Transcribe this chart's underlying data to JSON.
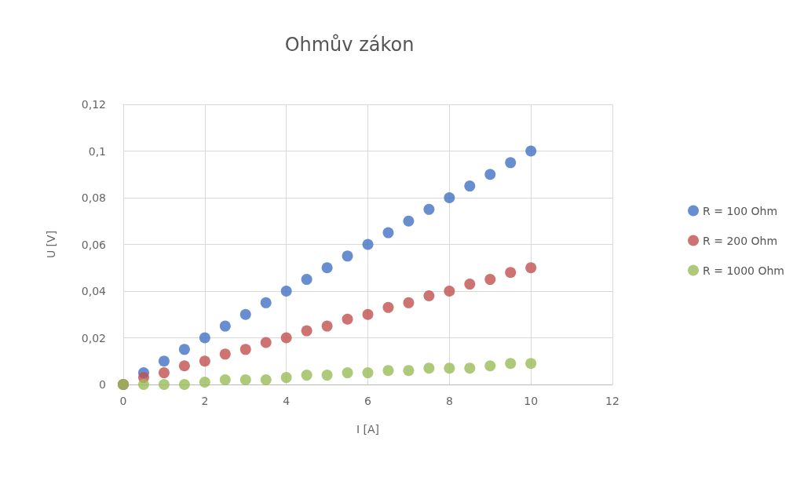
{
  "chart_data": {
    "type": "scatter",
    "title": "Ohmův zákon",
    "xlabel": "I [A]",
    "ylabel": "U [V]",
    "x": [
      0,
      0.5,
      1,
      1.5,
      2,
      2.5,
      3,
      3.5,
      4,
      4.5,
      5,
      5.5,
      6,
      6.5,
      7,
      7.5,
      8,
      8.5,
      9,
      9.5,
      10
    ],
    "series": [
      {
        "name": "R = 100 Ohm",
        "color": "#4472c4",
        "values": [
          0,
          0.005,
          0.01,
          0.015,
          0.02,
          0.025,
          0.03,
          0.035,
          0.04,
          0.045,
          0.05,
          0.055,
          0.06,
          0.065,
          0.07,
          0.075,
          0.08,
          0.085,
          0.09,
          0.095,
          0.1
        ]
      },
      {
        "name": "R = 200 Ohm",
        "color": "#c0504d",
        "values": [
          0,
          0.003,
          0.005,
          0.008,
          0.01,
          0.013,
          0.015,
          0.018,
          0.02,
          0.023,
          0.025,
          0.028,
          0.03,
          0.033,
          0.035,
          0.038,
          0.04,
          0.043,
          0.045,
          0.048,
          0.05
        ]
      },
      {
        "name": "R = 1000 Ohm",
        "color": "#9bbb59",
        "values": [
          0,
          0,
          0,
          0,
          0.001,
          0.002,
          0.002,
          0.002,
          0.003,
          0.004,
          0.004,
          0.005,
          0.005,
          0.006,
          0.006,
          0.007,
          0.007,
          0.007,
          0.008,
          0.009,
          0.009
        ]
      }
    ],
    "xlim": [
      0,
      12
    ],
    "xticks": [
      0,
      2,
      4,
      6,
      8,
      10,
      12
    ],
    "ylim": [
      0,
      0.12
    ],
    "yticks": [
      0,
      {
        "value": 0.02,
        "label": "0,02"
      },
      {
        "value": 0.04,
        "label": "0,04"
      },
      {
        "value": 0.06,
        "label": "0,06"
      },
      {
        "value": 0.08,
        "label": "0,08"
      },
      {
        "value": 0.1,
        "label": "0,1"
      },
      {
        "value": 0.12,
        "label": "0,12"
      }
    ],
    "grid": true,
    "legend": "right",
    "marker": "circle"
  }
}
